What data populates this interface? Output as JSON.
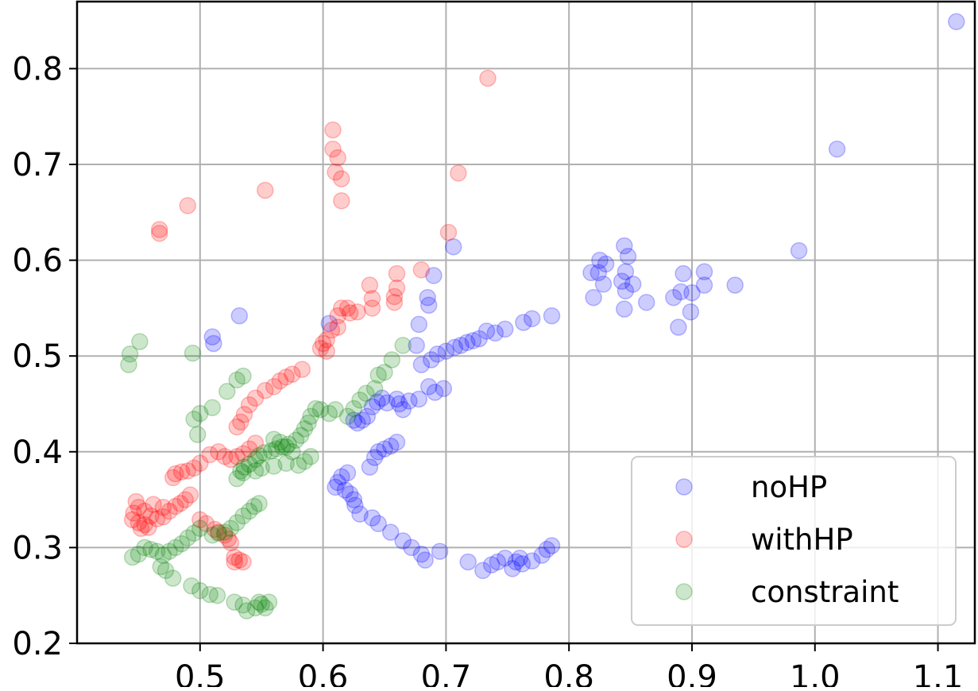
{
  "chart_data": {
    "type": "scatter",
    "title": "",
    "xlabel": "",
    "ylabel": "",
    "xlim": [
      0.4,
      1.13
    ],
    "ylim": [
      0.2,
      0.87
    ],
    "xticks": [
      "0.5",
      "0.6",
      "0.7",
      "0.8",
      "0.9",
      "1.0",
      "1.1"
    ],
    "yticks": [
      "0.2",
      "0.3",
      "0.4",
      "0.5",
      "0.6",
      "0.7",
      "0.8"
    ],
    "grid": true,
    "legend_position": "lower right",
    "series": [
      {
        "name": "noHP",
        "color": "#0000ff",
        "points": [
          [
            1.115,
            0.849
          ],
          [
            1.018,
            0.716
          ],
          [
            0.987,
            0.61
          ],
          [
            0.935,
            0.574
          ],
          [
            0.91,
            0.588
          ],
          [
            0.91,
            0.574
          ],
          [
            0.9,
            0.566
          ],
          [
            0.899,
            0.546
          ],
          [
            0.893,
            0.586
          ],
          [
            0.891,
            0.567
          ],
          [
            0.885,
            0.561
          ],
          [
            0.889,
            0.53
          ],
          [
            0.863,
            0.556
          ],
          [
            0.852,
            0.575
          ],
          [
            0.848,
            0.604
          ],
          [
            0.845,
            0.615
          ],
          [
            0.846,
            0.588
          ],
          [
            0.843,
            0.578
          ],
          [
            0.846,
            0.568
          ],
          [
            0.845,
            0.549
          ],
          [
            0.83,
            0.596
          ],
          [
            0.825,
            0.6
          ],
          [
            0.824,
            0.587
          ],
          [
            0.828,
            0.575
          ],
          [
            0.818,
            0.587
          ],
          [
            0.82,
            0.561
          ],
          [
            0.786,
            0.542
          ],
          [
            0.77,
            0.539
          ],
          [
            0.763,
            0.535
          ],
          [
            0.748,
            0.528
          ],
          [
            0.74,
            0.524
          ],
          [
            0.733,
            0.526
          ],
          [
            0.727,
            0.518
          ],
          [
            0.722,
            0.516
          ],
          [
            0.717,
            0.514
          ],
          [
            0.712,
            0.511
          ],
          [
            0.707,
            0.509
          ],
          [
            0.7,
            0.505
          ],
          [
            0.693,
            0.502
          ],
          [
            0.688,
            0.496
          ],
          [
            0.68,
            0.491
          ],
          [
            0.676,
            0.511
          ],
          [
            0.678,
            0.533
          ],
          [
            0.686,
            0.553
          ],
          [
            0.685,
            0.561
          ],
          [
            0.69,
            0.584
          ],
          [
            0.706,
            0.614
          ],
          [
            0.698,
            0.466
          ],
          [
            0.691,
            0.462
          ],
          [
            0.686,
            0.468
          ],
          [
            0.678,
            0.455
          ],
          [
            0.67,
            0.453
          ],
          [
            0.665,
            0.444
          ],
          [
            0.662,
            0.45
          ],
          [
            0.66,
            0.455
          ],
          [
            0.652,
            0.451
          ],
          [
            0.648,
            0.456
          ],
          [
            0.644,
            0.452
          ],
          [
            0.64,
            0.447
          ],
          [
            0.636,
            0.437
          ],
          [
            0.632,
            0.433
          ],
          [
            0.628,
            0.43
          ],
          [
            0.625,
            0.433
          ],
          [
            0.66,
            0.41
          ],
          [
            0.655,
            0.406
          ],
          [
            0.65,
            0.403
          ],
          [
            0.645,
            0.4
          ],
          [
            0.642,
            0.394
          ],
          [
            0.638,
            0.384
          ],
          [
            0.62,
            0.378
          ],
          [
            0.615,
            0.374
          ],
          [
            0.612,
            0.368
          ],
          [
            0.61,
            0.363
          ],
          [
            0.618,
            0.36
          ],
          [
            0.622,
            0.356
          ],
          [
            0.625,
            0.35
          ],
          [
            0.626,
            0.344
          ],
          [
            0.63,
            0.335
          ],
          [
            0.64,
            0.331
          ],
          [
            0.645,
            0.325
          ],
          [
            0.655,
            0.316
          ],
          [
            0.665,
            0.307
          ],
          [
            0.672,
            0.3
          ],
          [
            0.68,
            0.293
          ],
          [
            0.683,
            0.287
          ],
          [
            0.695,
            0.296
          ],
          [
            0.718,
            0.285
          ],
          [
            0.73,
            0.276
          ],
          [
            0.737,
            0.282
          ],
          [
            0.742,
            0.285
          ],
          [
            0.748,
            0.289
          ],
          [
            0.754,
            0.278
          ],
          [
            0.757,
            0.285
          ],
          [
            0.76,
            0.289
          ],
          [
            0.762,
            0.283
          ],
          [
            0.77,
            0.286
          ],
          [
            0.778,
            0.292
          ],
          [
            0.782,
            0.298
          ],
          [
            0.786,
            0.302
          ],
          [
            0.51,
            0.52
          ],
          [
            0.511,
            0.513
          ],
          [
            0.532,
            0.542
          ],
          [
            0.605,
            0.534
          ]
        ]
      },
      {
        "name": "withHP",
        "color": "#ff0000",
        "points": [
          [
            0.734,
            0.79
          ],
          [
            0.71,
            0.691
          ],
          [
            0.608,
            0.736
          ],
          [
            0.608,
            0.716
          ],
          [
            0.612,
            0.707
          ],
          [
            0.61,
            0.692
          ],
          [
            0.615,
            0.685
          ],
          [
            0.615,
            0.662
          ],
          [
            0.553,
            0.673
          ],
          [
            0.49,
            0.657
          ],
          [
            0.467,
            0.632
          ],
          [
            0.467,
            0.628
          ],
          [
            0.702,
            0.629
          ],
          [
            0.68,
            0.59
          ],
          [
            0.66,
            0.586
          ],
          [
            0.66,
            0.571
          ],
          [
            0.658,
            0.562
          ],
          [
            0.658,
            0.556
          ],
          [
            0.638,
            0.574
          ],
          [
            0.64,
            0.56
          ],
          [
            0.64,
            0.55
          ],
          [
            0.628,
            0.546
          ],
          [
            0.622,
            0.545
          ],
          [
            0.62,
            0.55
          ],
          [
            0.615,
            0.55
          ],
          [
            0.612,
            0.542
          ],
          [
            0.607,
            0.527
          ],
          [
            0.603,
            0.517
          ],
          [
            0.6,
            0.513
          ],
          [
            0.598,
            0.508
          ],
          [
            0.603,
            0.505
          ],
          [
            0.612,
            0.53
          ],
          [
            0.583,
            0.486
          ],
          [
            0.575,
            0.481
          ],
          [
            0.57,
            0.478
          ],
          [
            0.565,
            0.474
          ],
          [
            0.56,
            0.468
          ],
          [
            0.553,
            0.464
          ],
          [
            0.545,
            0.456
          ],
          [
            0.54,
            0.449
          ],
          [
            0.536,
            0.439
          ],
          [
            0.533,
            0.431
          ],
          [
            0.53,
            0.426
          ],
          [
            0.545,
            0.409
          ],
          [
            0.54,
            0.403
          ],
          [
            0.535,
            0.398
          ],
          [
            0.53,
            0.395
          ],
          [
            0.525,
            0.392
          ],
          [
            0.52,
            0.395
          ],
          [
            0.515,
            0.4
          ],
          [
            0.508,
            0.397
          ],
          [
            0.5,
            0.388
          ],
          [
            0.495,
            0.383
          ],
          [
            0.49,
            0.38
          ],
          [
            0.485,
            0.379
          ],
          [
            0.48,
            0.377
          ],
          [
            0.478,
            0.373
          ],
          [
            0.492,
            0.355
          ],
          [
            0.488,
            0.35
          ],
          [
            0.484,
            0.346
          ],
          [
            0.48,
            0.343
          ],
          [
            0.475,
            0.338
          ],
          [
            0.47,
            0.332
          ],
          [
            0.465,
            0.33
          ],
          [
            0.46,
            0.333
          ],
          [
            0.455,
            0.338
          ],
          [
            0.45,
            0.342
          ],
          [
            0.448,
            0.348
          ],
          [
            0.446,
            0.336
          ],
          [
            0.445,
            0.329
          ],
          [
            0.45,
            0.326
          ],
          [
            0.455,
            0.324
          ],
          [
            0.458,
            0.321
          ],
          [
            0.452,
            0.32
          ],
          [
            0.462,
            0.345
          ],
          [
            0.47,
            0.342
          ],
          [
            0.5,
            0.329
          ],
          [
            0.505,
            0.325
          ],
          [
            0.512,
            0.319
          ],
          [
            0.515,
            0.316
          ],
          [
            0.52,
            0.313
          ],
          [
            0.523,
            0.309
          ],
          [
            0.525,
            0.305
          ],
          [
            0.528,
            0.29
          ],
          [
            0.532,
            0.287
          ],
          [
            0.535,
            0.285
          ],
          [
            0.528,
            0.285
          ]
        ]
      },
      {
        "name": "constraint",
        "color": "#008000",
        "points": [
          [
            0.443,
            0.502
          ],
          [
            0.442,
            0.491
          ],
          [
            0.451,
            0.515
          ],
          [
            0.494,
            0.503
          ],
          [
            0.535,
            0.479
          ],
          [
            0.53,
            0.475
          ],
          [
            0.522,
            0.463
          ],
          [
            0.51,
            0.446
          ],
          [
            0.5,
            0.44
          ],
          [
            0.495,
            0.434
          ],
          [
            0.498,
            0.418
          ],
          [
            0.665,
            0.511
          ],
          [
            0.656,
            0.496
          ],
          [
            0.65,
            0.483
          ],
          [
            0.645,
            0.48
          ],
          [
            0.642,
            0.466
          ],
          [
            0.635,
            0.461
          ],
          [
            0.63,
            0.454
          ],
          [
            0.625,
            0.445
          ],
          [
            0.62,
            0.437
          ],
          [
            0.61,
            0.444
          ],
          [
            0.605,
            0.44
          ],
          [
            0.598,
            0.444
          ],
          [
            0.594,
            0.445
          ],
          [
            0.59,
            0.437
          ],
          [
            0.588,
            0.43
          ],
          [
            0.585,
            0.424
          ],
          [
            0.582,
            0.417
          ],
          [
            0.578,
            0.412
          ],
          [
            0.572,
            0.408
          ],
          [
            0.567,
            0.405
          ],
          [
            0.562,
            0.403
          ],
          [
            0.558,
            0.401
          ],
          [
            0.552,
            0.399
          ],
          [
            0.548,
            0.396
          ],
          [
            0.545,
            0.392
          ],
          [
            0.54,
            0.387
          ],
          [
            0.536,
            0.384
          ],
          [
            0.533,
            0.38
          ],
          [
            0.53,
            0.372
          ],
          [
            0.535,
            0.378
          ],
          [
            0.56,
            0.413
          ],
          [
            0.565,
            0.41
          ],
          [
            0.57,
            0.405
          ],
          [
            0.575,
            0.4
          ],
          [
            0.59,
            0.395
          ],
          [
            0.585,
            0.39
          ],
          [
            0.58,
            0.386
          ],
          [
            0.57,
            0.388
          ],
          [
            0.56,
            0.385
          ],
          [
            0.55,
            0.383
          ],
          [
            0.545,
            0.38
          ],
          [
            0.548,
            0.346
          ],
          [
            0.544,
            0.343
          ],
          [
            0.54,
            0.338
          ],
          [
            0.535,
            0.333
          ],
          [
            0.53,
            0.326
          ],
          [
            0.525,
            0.32
          ],
          [
            0.52,
            0.316
          ],
          [
            0.515,
            0.315
          ],
          [
            0.51,
            0.313
          ],
          [
            0.5,
            0.32
          ],
          [
            0.495,
            0.315
          ],
          [
            0.49,
            0.31
          ],
          [
            0.485,
            0.304
          ],
          [
            0.48,
            0.3
          ],
          [
            0.475,
            0.296
          ],
          [
            0.47,
            0.292
          ],
          [
            0.465,
            0.296
          ],
          [
            0.46,
            0.298
          ],
          [
            0.455,
            0.3
          ],
          [
            0.45,
            0.293
          ],
          [
            0.445,
            0.29
          ],
          [
            0.468,
            0.28
          ],
          [
            0.472,
            0.276
          ],
          [
            0.478,
            0.268
          ],
          [
            0.493,
            0.26
          ],
          [
            0.5,
            0.255
          ],
          [
            0.508,
            0.251
          ],
          [
            0.514,
            0.25
          ],
          [
            0.528,
            0.243
          ],
          [
            0.535,
            0.24
          ],
          [
            0.538,
            0.234
          ],
          [
            0.545,
            0.237
          ],
          [
            0.55,
            0.241
          ],
          [
            0.553,
            0.237
          ],
          [
            0.556,
            0.243
          ],
          [
            0.548,
            0.243
          ]
        ]
      }
    ]
  }
}
